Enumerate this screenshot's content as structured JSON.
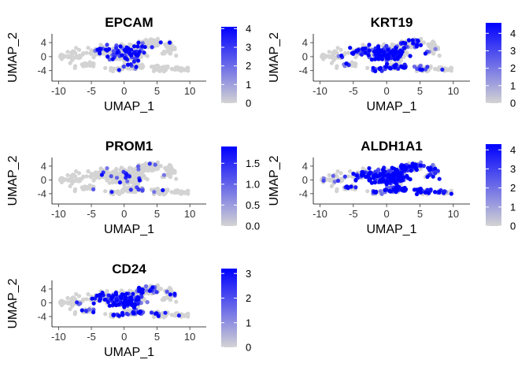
{
  "colors": {
    "low": "#d3d3d3",
    "high": "#0000ff",
    "axis": "#333333",
    "background": "#ffffff"
  },
  "chart_data": [
    {
      "type": "scatter",
      "title": "EPCAM",
      "xlabel": "UMAP_1",
      "ylabel": "UMAP_2",
      "xlim": [
        -11,
        12.5
      ],
      "ylim": [
        -7,
        6.5
      ],
      "xticks": [
        -10,
        -5,
        0,
        5,
        10
      ],
      "yticks": [
        4,
        0,
        -4
      ],
      "xtick_labels": [
        "-10",
        "-5",
        "0",
        "5",
        "10"
      ],
      "ytick_labels": [
        "4",
        "0",
        "-4"
      ],
      "color_scale": {
        "min": 0,
        "max": 4.1,
        "ticks": [
          0,
          1,
          2,
          3,
          4
        ],
        "tick_labels": [
          "0",
          "1",
          "2",
          "3",
          "4"
        ]
      },
      "expression_profile": {
        "center": [
          0.8,
          1.0
        ],
        "spread": 3.2,
        "prob": 0.22,
        "max_level": 0.9
      }
    },
    {
      "type": "scatter",
      "title": "KRT19",
      "xlabel": "UMAP_1",
      "ylabel": "UMAP_2",
      "xlim": [
        -11,
        12.5
      ],
      "ylim": [
        -7,
        6.5
      ],
      "xticks": [
        -10,
        -5,
        0,
        5,
        10
      ],
      "yticks": [
        4,
        0,
        -4
      ],
      "xtick_labels": [
        "-10",
        "-5",
        "0",
        "5",
        "10"
      ],
      "ytick_labels": [
        "4",
        "0",
        "-4"
      ],
      "color_scale": {
        "min": 0,
        "max": 4.6,
        "ticks": [
          0,
          1,
          2,
          3,
          4
        ],
        "tick_labels": [
          "0",
          "1",
          "2",
          "3",
          "4"
        ]
      },
      "expression_profile": {
        "center": [
          -0.5,
          0.0
        ],
        "spread": 4.5,
        "prob": 0.38,
        "max_level": 0.95
      }
    },
    {
      "type": "scatter",
      "title": "PROM1",
      "xlabel": "UMAP_1",
      "ylabel": "UMAP_2",
      "xlim": [
        -11,
        12.5
      ],
      "ylim": [
        -7,
        6.5
      ],
      "xticks": [
        -10,
        -5,
        0,
        5,
        10
      ],
      "yticks": [
        4,
        0,
        -4
      ],
      "xtick_labels": [
        "-10",
        "-5",
        "0",
        "5",
        "10"
      ],
      "ytick_labels": [
        "4",
        "0",
        "-4"
      ],
      "color_scale": {
        "min": 0,
        "max": 1.9,
        "ticks": [
          0,
          0.5,
          1.0,
          1.5
        ],
        "tick_labels": [
          "0.0",
          "0.5",
          "1.0",
          "1.5"
        ]
      },
      "expression_profile": {
        "center": [
          0.5,
          0.0
        ],
        "spread": 6.0,
        "prob": 0.05,
        "max_level": 0.6
      }
    },
    {
      "type": "scatter",
      "title": "ALDH1A1",
      "xlabel": "UMAP_1",
      "ylabel": "UMAP_2",
      "xlim": [
        -11,
        12.5
      ],
      "ylim": [
        -7,
        6.5
      ],
      "xticks": [
        -10,
        -5,
        0,
        5,
        10
      ],
      "yticks": [
        4,
        0,
        -4
      ],
      "xtick_labels": [
        "-10",
        "-5",
        "0",
        "5",
        "10"
      ],
      "ytick_labels": [
        "4",
        "0",
        "-4"
      ],
      "color_scale": {
        "min": 0,
        "max": 4.3,
        "ticks": [
          0,
          1,
          2,
          3,
          4
        ],
        "tick_labels": [
          "0",
          "1",
          "2",
          "3",
          "4"
        ]
      },
      "expression_profile": {
        "center": [
          2.5,
          -1.0
        ],
        "spread": 5.5,
        "prob": 0.55,
        "max_level": 0.9
      }
    },
    {
      "type": "scatter",
      "title": "CD24",
      "xlabel": "UMAP_1",
      "ylabel": "UMAP_2",
      "xlim": [
        -11,
        12.5
      ],
      "ylim": [
        -7,
        6.5
      ],
      "xticks": [
        -10,
        -5,
        0,
        5,
        10
      ],
      "yticks": [
        4,
        0,
        -4
      ],
      "xtick_labels": [
        "-10",
        "-5",
        "0",
        "5",
        "10"
      ],
      "ytick_labels": [
        "4",
        "0",
        "-4"
      ],
      "color_scale": {
        "min": 0,
        "max": 3.2,
        "ticks": [
          0,
          1,
          2,
          3
        ],
        "tick_labels": [
          "0",
          "1",
          "2",
          "3"
        ]
      },
      "expression_profile": {
        "center": [
          0.0,
          0.5
        ],
        "spread": 4.0,
        "prob": 0.35,
        "max_level": 0.95
      }
    }
  ]
}
